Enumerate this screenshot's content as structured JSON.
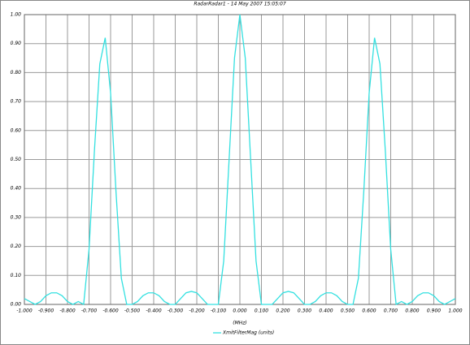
{
  "chart_data": {
    "type": "line",
    "title": "RadarRadar1 - 14 May 2007 15:05:07",
    "x_label": "(MHz)",
    "x": [
      -1.0,
      -0.975,
      -0.95,
      -0.925,
      -0.9,
      -0.875,
      -0.85,
      -0.825,
      -0.8,
      -0.775,
      -0.75,
      -0.725,
      -0.7,
      -0.675,
      -0.65,
      -0.625,
      -0.6,
      -0.575,
      -0.55,
      -0.525,
      -0.5,
      -0.475,
      -0.45,
      -0.425,
      -0.4,
      -0.375,
      -0.35,
      -0.325,
      -0.3,
      -0.275,
      -0.25,
      -0.225,
      -0.2,
      -0.175,
      -0.15,
      -0.125,
      -0.1,
      -0.075,
      -0.05,
      -0.025,
      0,
      0.025,
      0.05,
      0.075,
      0.1,
      0.125,
      0.15,
      0.175,
      0.2,
      0.225,
      0.25,
      0.275,
      0.3,
      0.325,
      0.35,
      0.375,
      0.4,
      0.425,
      0.45,
      0.475,
      0.5,
      0.525,
      0.55,
      0.575,
      0.6,
      0.625,
      0.65,
      0.675,
      0.7,
      0.725,
      0.75,
      0.775,
      0.8,
      0.825,
      0.85,
      0.875,
      0.9,
      0.925,
      0.95,
      0.975,
      1.0
    ],
    "series": [
      {
        "name": "XmitFilterMag (units)",
        "color": "#33e0e0",
        "values": [
          0.02,
          0.01,
          0.0,
          0.01,
          0.03,
          0.04,
          0.04,
          0.03,
          0.01,
          0.0,
          0.01,
          0.0,
          0.19,
          0.53,
          0.83,
          0.92,
          0.73,
          0.39,
          0.09,
          0.0,
          0.0,
          0.01,
          0.03,
          0.04,
          0.04,
          0.03,
          0.01,
          0.0,
          0.0,
          0.02,
          0.04,
          0.045,
          0.04,
          0.02,
          0.0,
          0.0,
          0.0,
          0.15,
          0.5,
          0.85,
          1.0,
          0.85,
          0.5,
          0.15,
          0.0,
          0.0,
          0.0,
          0.02,
          0.04,
          0.045,
          0.04,
          0.02,
          0.0,
          0.0,
          0.01,
          0.03,
          0.04,
          0.04,
          0.03,
          0.01,
          0.0,
          0.0,
          0.09,
          0.39,
          0.73,
          0.92,
          0.83,
          0.53,
          0.19,
          0.0,
          0.01,
          0.0,
          0.01,
          0.03,
          0.04,
          0.04,
          0.03,
          0.01,
          0.0,
          0.01,
          0.02
        ]
      }
    ],
    "xlim": [
      -1.0,
      1.0
    ],
    "ylim": [
      0,
      1.0
    ],
    "xticks": [
      {
        "value": -1.0,
        "label": "-1.000"
      },
      {
        "value": -0.9,
        "label": "-0.900"
      },
      {
        "value": -0.8,
        "label": "-0.800"
      },
      {
        "value": -0.7,
        "label": "-0.700"
      },
      {
        "value": -0.6,
        "label": "-0.600"
      },
      {
        "value": -0.5,
        "label": "-0.500"
      },
      {
        "value": -0.4,
        "label": "-0.400"
      },
      {
        "value": -0.3,
        "label": "-0.300"
      },
      {
        "value": -0.2,
        "label": "-0.200"
      },
      {
        "value": -0.1,
        "label": "-0.100"
      },
      {
        "value": 0,
        "label": "0.000"
      },
      {
        "value": 0.1,
        "label": "0.100"
      },
      {
        "value": 0.2,
        "label": "0.200"
      },
      {
        "value": 0.3,
        "label": "0.300"
      },
      {
        "value": 0.4,
        "label": "0.400"
      },
      {
        "value": 0.5,
        "label": "0.500"
      },
      {
        "value": 0.6,
        "label": "0.600"
      },
      {
        "value": 0.7,
        "label": "0.700"
      },
      {
        "value": 0.8,
        "label": "0.800"
      },
      {
        "value": 0.9,
        "label": "0.900"
      },
      {
        "value": 1.0,
        "label": "1.000"
      }
    ],
    "yticks": [
      {
        "value": 0,
        "label": "0.00"
      },
      {
        "value": 0.1,
        "label": "0.10"
      },
      {
        "value": 0.2,
        "label": "0.20"
      },
      {
        "value": 0.3,
        "label": "0.30"
      },
      {
        "value": 0.4,
        "label": "0.40"
      },
      {
        "value": 0.5,
        "label": "0.50"
      },
      {
        "value": 0.6,
        "label": "0.60"
      },
      {
        "value": 0.7,
        "label": "0.70"
      },
      {
        "value": 0.8,
        "label": "0.80"
      },
      {
        "value": 0.9,
        "label": "0.90"
      },
      {
        "value": 1.0,
        "label": "1.00"
      }
    ],
    "grid": true
  }
}
